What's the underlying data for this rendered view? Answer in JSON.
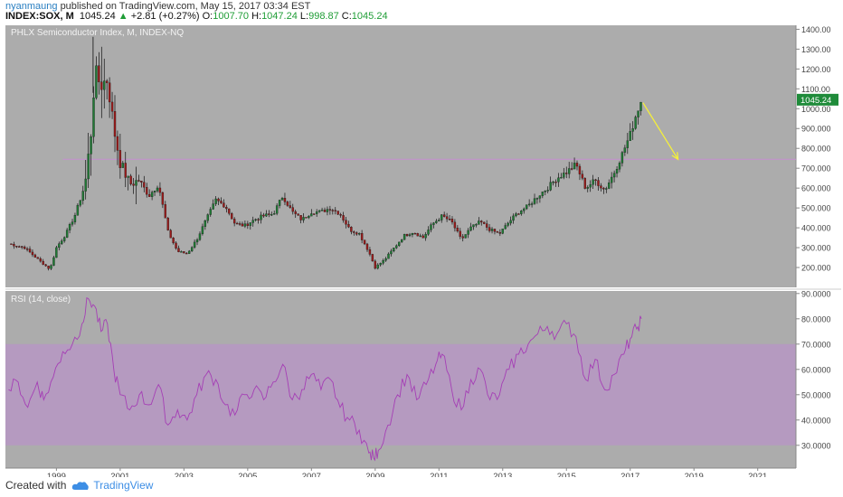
{
  "header": {
    "user": "nyanmaung",
    "published": "published on TradingView.com, May 15, 2017 03:34 EST",
    "symbol": "INDEX:SOX, M",
    "last": "1045.24",
    "change": "+2.81 (+0.27%)",
    "open_label": "O:",
    "open": "1007.70",
    "high_label": "H:",
    "high": "1047.24",
    "low_label": "L:",
    "low": "998.87",
    "close_label": "C:",
    "close": "1045.24"
  },
  "footer": {
    "created_with": "Created with",
    "brand": "TradingView"
  },
  "colors": {
    "panel_bg": "#acacac",
    "up": "#1f7a34",
    "down": "#9a1b1b",
    "hline": "#c58ed0",
    "arrow": "#f5ef3a",
    "rsi_line": "#a53fb5",
    "rsi_band": "rgba(190,140,210,0.55)",
    "price_tag": "#1f8b3a"
  },
  "chart_data": [
    {
      "type": "candlestick",
      "title": "PHLX Semiconductor Index, M, INDEX-NQ",
      "x_range": [
        1997.4,
        2022.2
      ],
      "ylim": [
        100,
        1420
      ],
      "y_ticks": [
        "1400.00",
        "1300.00",
        "1200.00",
        "1100.00",
        "1000.00",
        "900.000",
        "800.000",
        "700.000",
        "600.000",
        "500.000",
        "400.000",
        "300.000",
        "200.000"
      ],
      "y_tick_values": [
        1400,
        1300,
        1200,
        1100,
        1000,
        900,
        800,
        700,
        600,
        500,
        400,
        300,
        200
      ],
      "x_tick_labels": [
        "1999",
        "2001",
        "2003",
        "2005",
        "2007",
        "2009",
        "2011",
        "2013",
        "2015",
        "2017",
        "2019",
        "2021"
      ],
      "x_tick_values": [
        1999,
        2001,
        2003,
        2005,
        2007,
        2009,
        2011,
        2013,
        2015,
        2017,
        2019,
        2021
      ],
      "last_price_label": "1045.24",
      "last_price": 1045.24,
      "horizontal_line": 745,
      "arrow": {
        "from": [
          2017.4,
          1030
        ],
        "to": [
          2018.5,
          745
        ]
      },
      "anchors": [
        [
          1997.5,
          320
        ],
        [
          1998.0,
          300
        ],
        [
          1998.5,
          230
        ],
        [
          1998.8,
          190
        ],
        [
          1999.0,
          300
        ],
        [
          1999.3,
          370
        ],
        [
          1999.6,
          470
        ],
        [
          1999.9,
          620
        ],
        [
          2000.1,
          900
        ],
        [
          2000.2,
          1180
        ],
        [
          2000.4,
          1120
        ],
        [
          2000.6,
          1150
        ],
        [
          2000.8,
          900
        ],
        [
          2001.0,
          730
        ],
        [
          2001.3,
          620
        ],
        [
          2001.6,
          640
        ],
        [
          2001.9,
          560
        ],
        [
          2002.2,
          620
        ],
        [
          2002.5,
          380
        ],
        [
          2002.8,
          280
        ],
        [
          2003.1,
          270
        ],
        [
          2003.4,
          340
        ],
        [
          2003.7,
          440
        ],
        [
          2004.0,
          540
        ],
        [
          2004.3,
          510
        ],
        [
          2004.6,
          420
        ],
        [
          2004.9,
          410
        ],
        [
          2005.2,
          440
        ],
        [
          2005.5,
          460
        ],
        [
          2005.8,
          470
        ],
        [
          2006.1,
          560
        ],
        [
          2006.4,
          480
        ],
        [
          2006.7,
          440
        ],
        [
          2007.0,
          480
        ],
        [
          2007.3,
          480
        ],
        [
          2007.6,
          500
        ],
        [
          2007.9,
          470
        ],
        [
          2008.2,
          390
        ],
        [
          2008.5,
          370
        ],
        [
          2008.8,
          280
        ],
        [
          2009.0,
          200
        ],
        [
          2009.3,
          240
        ],
        [
          2009.6,
          300
        ],
        [
          2009.9,
          360
        ],
        [
          2010.2,
          380
        ],
        [
          2010.5,
          350
        ],
        [
          2010.8,
          420
        ],
        [
          2011.1,
          460
        ],
        [
          2011.4,
          430
        ],
        [
          2011.7,
          340
        ],
        [
          2012.0,
          400
        ],
        [
          2012.3,
          430
        ],
        [
          2012.6,
          390
        ],
        [
          2012.9,
          370
        ],
        [
          2013.2,
          430
        ],
        [
          2013.5,
          480
        ],
        [
          2013.8,
          510
        ],
        [
          2014.1,
          560
        ],
        [
          2014.4,
          600
        ],
        [
          2014.7,
          650
        ],
        [
          2015.0,
          680
        ],
        [
          2015.3,
          720
        ],
        [
          2015.6,
          600
        ],
        [
          2015.9,
          640
        ],
        [
          2016.2,
          590
        ],
        [
          2016.5,
          680
        ],
        [
          2016.8,
          790
        ],
        [
          2017.0,
          870
        ],
        [
          2017.2,
          980
        ],
        [
          2017.35,
          1045
        ]
      ]
    },
    {
      "type": "line",
      "title": "RSI (14, close)",
      "x_range": [
        1997.4,
        2022.2
      ],
      "ylim": [
        21,
        91
      ],
      "y_ticks": [
        "90.0000",
        "80.0000",
        "70.0000",
        "60.0000",
        "50.0000",
        "40.0000",
        "30.0000"
      ],
      "y_tick_values": [
        90,
        80,
        70,
        60,
        50,
        40,
        30
      ],
      "band": [
        30,
        70
      ],
      "series": [
        {
          "x": [
            1997.5,
            1997.8,
            1998.1,
            1998.4,
            1998.6,
            1998.9,
            1999.2,
            1999.5,
            1999.8,
            2000.0,
            2000.2,
            2000.4,
            2000.6,
            2000.8,
            2001.0,
            2001.3,
            2001.6,
            2001.9,
            2002.2,
            2002.5,
            2002.8,
            2003.1,
            2003.4,
            2003.7,
            2004.0,
            2004.3,
            2004.6,
            2004.9,
            2005.2,
            2005.5,
            2005.8,
            2006.1,
            2006.4,
            2006.7,
            2007.0,
            2007.3,
            2007.6,
            2007.9,
            2008.2,
            2008.5,
            2008.8,
            2008.95,
            2009.1,
            2009.4,
            2009.7,
            2010.0,
            2010.3,
            2010.6,
            2010.9,
            2011.1,
            2011.4,
            2011.7,
            2012.0,
            2012.3,
            2012.6,
            2012.9,
            2013.2,
            2013.5,
            2013.8,
            2014.1,
            2014.4,
            2014.7,
            2015.0,
            2015.3,
            2015.6,
            2015.9,
            2016.2,
            2016.5,
            2016.8,
            2017.0,
            2017.2,
            2017.35
          ],
          "values": [
            52,
            55,
            45,
            55,
            48,
            57,
            67,
            70,
            78,
            88,
            85,
            75,
            78,
            60,
            50,
            44,
            50,
            46,
            54,
            38,
            44,
            40,
            50,
            58,
            56,
            46,
            42,
            50,
            52,
            48,
            55,
            62,
            48,
            52,
            58,
            52,
            56,
            45,
            40,
            36,
            27,
            25,
            28,
            38,
            50,
            58,
            48,
            54,
            62,
            66,
            52,
            44,
            56,
            60,
            48,
            50,
            60,
            66,
            70,
            74,
            77,
            74,
            78,
            73,
            56,
            64,
            52,
            58,
            66,
            72,
            76,
            80
          ]
        }
      ]
    }
  ]
}
